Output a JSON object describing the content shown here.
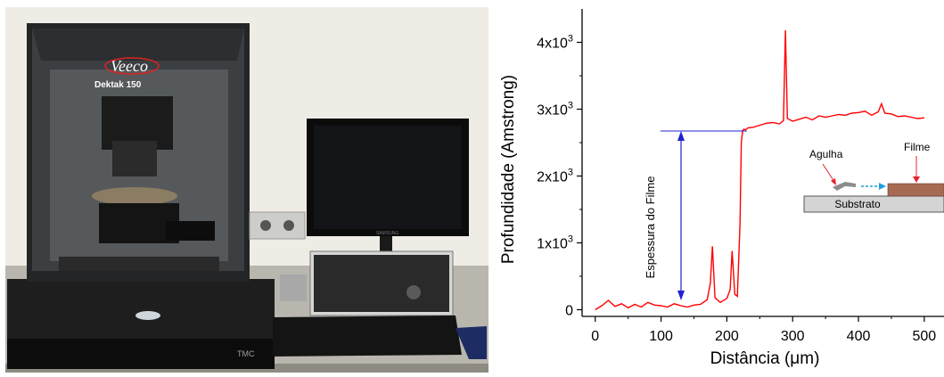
{
  "photo": {
    "brand": "Veeco",
    "model": "Dektak 150",
    "base_label": "TMC",
    "monitor_brand": "SAMSUNG"
  },
  "chart_data": {
    "type": "line",
    "xlabel": "Distância (μm)",
    "ylabel": "Profundidade (Amstrong)",
    "xlim": [
      -20,
      530
    ],
    "ylim": [
      -100,
      4500
    ],
    "x_ticks": [
      0,
      100,
      200,
      300,
      400,
      500
    ],
    "x_tick_labels": [
      "0",
      "100",
      "200",
      "300",
      "400",
      "500"
    ],
    "y_ticks": [
      0,
      1000,
      2000,
      3000,
      4000
    ],
    "y_tick_labels": [
      {
        "mantissa": "0",
        "exp": ""
      },
      {
        "mantissa": "1x10",
        "exp": "3"
      },
      {
        "mantissa": "2x10",
        "exp": "3"
      },
      {
        "mantissa": "3x10",
        "exp": "3"
      },
      {
        "mantissa": "4x10",
        "exp": "3"
      }
    ],
    "grid": false,
    "series": [
      {
        "color": "#ff0000",
        "x": [
          0,
          10,
          20,
          30,
          40,
          50,
          60,
          70,
          80,
          90,
          100,
          110,
          120,
          130,
          140,
          150,
          160,
          170,
          175,
          178,
          182,
          190,
          200,
          205,
          208,
          212,
          216,
          220,
          222,
          224,
          226,
          228,
          232,
          240,
          250,
          260,
          270,
          280,
          286,
          289,
          292,
          300,
          310,
          320,
          330,
          340,
          350,
          360,
          370,
          380,
          390,
          400,
          410,
          420,
          430,
          435,
          440,
          450,
          460,
          470,
          480,
          490,
          500
        ],
        "y": [
          0,
          60,
          140,
          50,
          90,
          30,
          80,
          40,
          110,
          70,
          60,
          40,
          90,
          60,
          40,
          70,
          80,
          150,
          400,
          950,
          180,
          110,
          170,
          300,
          880,
          230,
          200,
          1300,
          2500,
          2680,
          2700,
          2690,
          2720,
          2730,
          2760,
          2790,
          2800,
          2780,
          2830,
          4180,
          2860,
          2820,
          2850,
          2880,
          2840,
          2900,
          2880,
          2900,
          2920,
          2910,
          2940,
          2950,
          2970,
          2910,
          2960,
          3080,
          2940,
          2930,
          2890,
          2900,
          2880,
          2860,
          2870
        ]
      }
    ],
    "annotations": {
      "thickness_label": "Espessura do Filme",
      "needle_label": "Agulha",
      "film_label": "Filme",
      "substrate_label": "Substrato"
    },
    "colors": {
      "trace": "#ff0000",
      "thickness_marker": "#2222cc",
      "inset_arrow": "#1e9ee0"
    }
  }
}
